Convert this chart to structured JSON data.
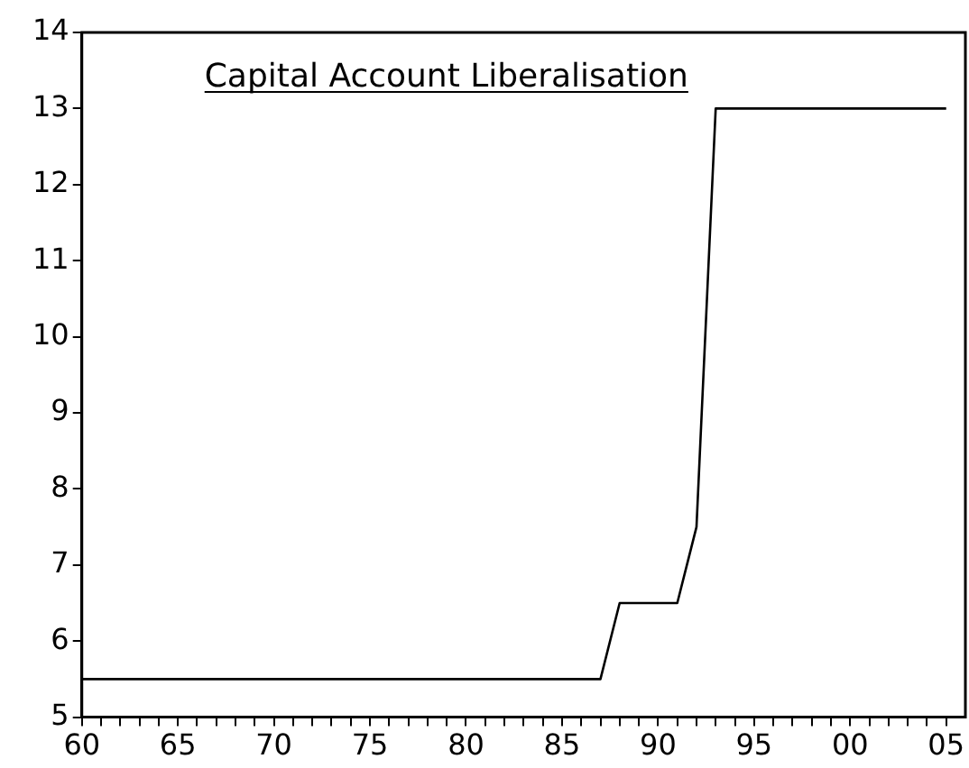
{
  "chart_data": {
    "type": "line",
    "title": "Capital Account Liberalisation",
    "x": [
      1960,
      1987,
      1988,
      1991,
      1992,
      1993,
      2005
    ],
    "series": [
      {
        "color": "#000000",
        "values": [
          5.5,
          5.5,
          6.5,
          6.5,
          7.5,
          13,
          13
        ]
      }
    ],
    "xlim": [
      1960,
      2006
    ],
    "xticks": [
      {
        "value": 1960,
        "label": "60"
      },
      {
        "value": 1961,
        "label": null
      },
      {
        "value": 1962,
        "label": null
      },
      {
        "value": 1963,
        "label": null
      },
      {
        "value": 1964,
        "label": null
      },
      {
        "value": 1965,
        "label": "65"
      },
      {
        "value": 1966,
        "label": null
      },
      {
        "value": 1967,
        "label": null
      },
      {
        "value": 1968,
        "label": null
      },
      {
        "value": 1969,
        "label": null
      },
      {
        "value": 1970,
        "label": "70"
      },
      {
        "value": 1971,
        "label": null
      },
      {
        "value": 1972,
        "label": null
      },
      {
        "value": 1973,
        "label": null
      },
      {
        "value": 1974,
        "label": null
      },
      {
        "value": 1975,
        "label": "75"
      },
      {
        "value": 1976,
        "label": null
      },
      {
        "value": 1977,
        "label": null
      },
      {
        "value": 1978,
        "label": null
      },
      {
        "value": 1979,
        "label": null
      },
      {
        "value": 1980,
        "label": "80"
      },
      {
        "value": 1981,
        "label": null
      },
      {
        "value": 1982,
        "label": null
      },
      {
        "value": 1983,
        "label": null
      },
      {
        "value": 1984,
        "label": null
      },
      {
        "value": 1985,
        "label": "85"
      },
      {
        "value": 1986,
        "label": null
      },
      {
        "value": 1987,
        "label": null
      },
      {
        "value": 1988,
        "label": null
      },
      {
        "value": 1989,
        "label": null
      },
      {
        "value": 1990,
        "label": "90"
      },
      {
        "value": 1991,
        "label": null
      },
      {
        "value": 1992,
        "label": null
      },
      {
        "value": 1993,
        "label": null
      },
      {
        "value": 1994,
        "label": null
      },
      {
        "value": 1995,
        "label": "95"
      },
      {
        "value": 1996,
        "label": null
      },
      {
        "value": 1997,
        "label": null
      },
      {
        "value": 1998,
        "label": null
      },
      {
        "value": 1999,
        "label": null
      },
      {
        "value": 2000,
        "label": "00"
      },
      {
        "value": 2001,
        "label": null
      },
      {
        "value": 2002,
        "label": null
      },
      {
        "value": 2003,
        "label": null
      },
      {
        "value": 2004,
        "label": null
      },
      {
        "value": 2005,
        "label": "05"
      }
    ],
    "ylim": [
      5,
      14
    ],
    "yticks": [
      5,
      6,
      7,
      8,
      9,
      10,
      11,
      12,
      13,
      14
    ],
    "grid": false,
    "legend": false,
    "marker": "none",
    "line_style": "solid"
  }
}
